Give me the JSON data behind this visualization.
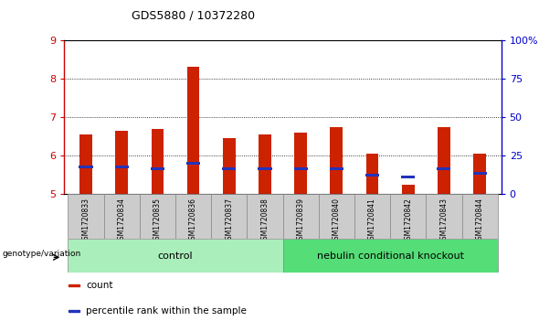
{
  "title": "GDS5880 / 10372280",
  "samples": [
    "GSM1720833",
    "GSM1720834",
    "GSM1720835",
    "GSM1720836",
    "GSM1720837",
    "GSM1720838",
    "GSM1720839",
    "GSM1720840",
    "GSM1720841",
    "GSM1720842",
    "GSM1720843",
    "GSM1720844"
  ],
  "bar_heights": [
    6.55,
    6.65,
    6.7,
    8.3,
    6.45,
    6.55,
    6.6,
    6.75,
    6.05,
    5.25,
    6.75,
    6.05
  ],
  "blue_marker": [
    5.7,
    5.7,
    5.65,
    5.8,
    5.65,
    5.65,
    5.65,
    5.65,
    5.5,
    5.45,
    5.65,
    5.55
  ],
  "ylim": [
    5.0,
    9.0
  ],
  "y_ticks_left": [
    5,
    6,
    7,
    8,
    9
  ],
  "y_ticks_right": [
    0,
    25,
    50,
    75,
    100
  ],
  "bar_color": "#cc2200",
  "blue_color": "#2233bb",
  "bar_width": 0.35,
  "grid_lines": [
    6,
    7,
    8
  ],
  "groups": [
    {
      "label": "control",
      "start": 0,
      "end": 5,
      "color": "#aaeebb"
    },
    {
      "label": "nebulin conditional knockout",
      "start": 6,
      "end": 11,
      "color": "#55dd77"
    }
  ],
  "group_label_prefix": "genotype/variation",
  "legend_items": [
    {
      "label": "count",
      "color": "#cc2200"
    },
    {
      "label": "percentile rank within the sample",
      "color": "#2233bb"
    }
  ],
  "left_color": "#cc0000",
  "right_color": "#0000cc",
  "bg_plot": "#ffffff",
  "bg_labels": "#cccccc",
  "base": 5.0
}
